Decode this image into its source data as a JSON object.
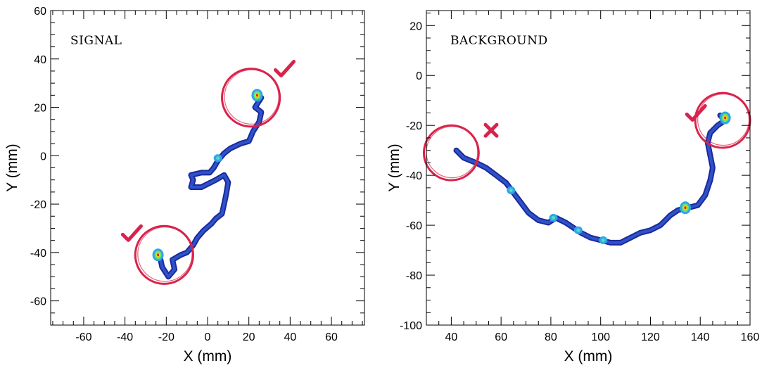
{
  "chart_data": [
    {
      "type": "heatmap",
      "title": "",
      "panel_label": "SIGNAL",
      "xlabel": "X (mm)",
      "ylabel": "Y (mm)",
      "xlim": [
        -76,
        76
      ],
      "ylim": [
        -70,
        60
      ],
      "xticks": [
        -60,
        -40,
        -20,
        0,
        20,
        40,
        60
      ],
      "yticks": [
        -60,
        -40,
        -20,
        0,
        20,
        40,
        60
      ],
      "track": [
        [
          24,
          26
        ],
        [
          26,
          24
        ],
        [
          23,
          20
        ],
        [
          26,
          18
        ],
        [
          25,
          14
        ],
        [
          22,
          10
        ],
        [
          20,
          6
        ],
        [
          16,
          5
        ],
        [
          11,
          3
        ],
        [
          8,
          1
        ],
        [
          5,
          -2
        ],
        [
          3,
          -5
        ],
        [
          1,
          -7
        ],
        [
          -3,
          -7
        ],
        [
          -8,
          -8
        ],
        [
          -7,
          -10
        ],
        [
          -8,
          -13
        ],
        [
          -3,
          -13
        ],
        [
          4,
          -10
        ],
        [
          8,
          -8
        ],
        [
          10,
          -11
        ],
        [
          9,
          -16
        ],
        [
          8,
          -20
        ],
        [
          7,
          -24
        ],
        [
          4,
          -26
        ],
        [
          2,
          -28
        ],
        [
          -2,
          -31
        ],
        [
          -5,
          -34
        ],
        [
          -7,
          -37
        ],
        [
          -10,
          -40
        ],
        [
          -13,
          -41
        ],
        [
          -17,
          -43
        ],
        [
          -16,
          -47
        ],
        [
          -19,
          -50
        ],
        [
          -22,
          -46
        ],
        [
          -23,
          -42
        ],
        [
          -25,
          -41
        ]
      ],
      "hotspots": [
        {
          "x": 24,
          "y": 25,
          "level": "high"
        },
        {
          "x": -24,
          "y": -41,
          "level": "high"
        },
        {
          "x": 5,
          "y": -1,
          "level": "medium"
        }
      ],
      "annotations": [
        {
          "type": "circle",
          "cx": 21,
          "cy": 24,
          "r": 14,
          "color": "#d9234b"
        },
        {
          "type": "circle",
          "cx": -21,
          "cy": -41,
          "r": 14,
          "color": "#d9234b"
        },
        {
          "type": "check",
          "x": 37,
          "y": 36,
          "color": "#d9234b"
        },
        {
          "type": "check",
          "x": -37,
          "y": -32,
          "color": "#d9234b"
        }
      ]
    },
    {
      "type": "heatmap",
      "title": "",
      "panel_label": "BACKGROUND",
      "xlabel": "X (mm)",
      "ylabel": "Y (mm)",
      "xlim": [
        30,
        160
      ],
      "ylim": [
        -100,
        26
      ],
      "xticks": [
        40,
        60,
        80,
        100,
        120,
        140,
        160
      ],
      "yticks": [
        -100,
        -80,
        -60,
        -40,
        -20,
        0,
        20
      ],
      "track": [
        [
          42,
          -30
        ],
        [
          45,
          -33
        ],
        [
          50,
          -35
        ],
        [
          54,
          -37
        ],
        [
          58,
          -40
        ],
        [
          62,
          -43
        ],
        [
          65,
          -47
        ],
        [
          68,
          -51
        ],
        [
          71,
          -55
        ],
        [
          75,
          -58
        ],
        [
          79,
          -59
        ],
        [
          82,
          -57
        ],
        [
          86,
          -59
        ],
        [
          89,
          -61
        ],
        [
          92,
          -63
        ],
        [
          96,
          -65
        ],
        [
          100,
          -66
        ],
        [
          104,
          -67
        ],
        [
          108,
          -67
        ],
        [
          112,
          -65
        ],
        [
          116,
          -63
        ],
        [
          120,
          -62
        ],
        [
          124,
          -60
        ],
        [
          128,
          -56
        ],
        [
          131,
          -54
        ],
        [
          135,
          -53
        ],
        [
          139,
          -52
        ],
        [
          142,
          -48
        ],
        [
          144,
          -42
        ],
        [
          145,
          -37
        ],
        [
          144,
          -32
        ],
        [
          143,
          -27
        ],
        [
          144,
          -23
        ],
        [
          147,
          -20
        ],
        [
          150,
          -18
        ],
        [
          148,
          -16
        ]
      ],
      "hotspots": [
        {
          "x": 150,
          "y": -17,
          "level": "high"
        },
        {
          "x": 134,
          "y": -53,
          "level": "high"
        },
        {
          "x": 81,
          "y": -57,
          "level": "medium"
        },
        {
          "x": 64,
          "y": -46,
          "level": "medium"
        },
        {
          "x": 101,
          "y": -66,
          "level": "medium"
        },
        {
          "x": 91,
          "y": -62,
          "level": "medium"
        }
      ],
      "annotations": [
        {
          "type": "circle",
          "cx": 40,
          "cy": -31,
          "r": 11,
          "color": "#d9234b"
        },
        {
          "type": "circle",
          "cx": 149,
          "cy": -18,
          "r": 11,
          "color": "#d9234b"
        },
        {
          "type": "cross",
          "x": 56,
          "y": -22,
          "color": "#d9234b"
        },
        {
          "type": "check",
          "x": 138,
          "y": -15,
          "color": "#d9234b"
        }
      ]
    }
  ]
}
